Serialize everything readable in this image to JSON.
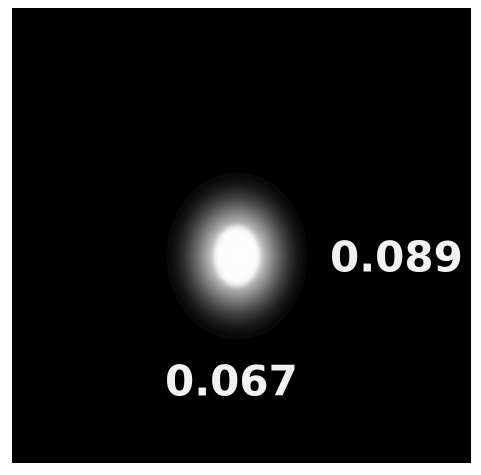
{
  "labels": [
    "0.089",
    "0.067"
  ]
}
